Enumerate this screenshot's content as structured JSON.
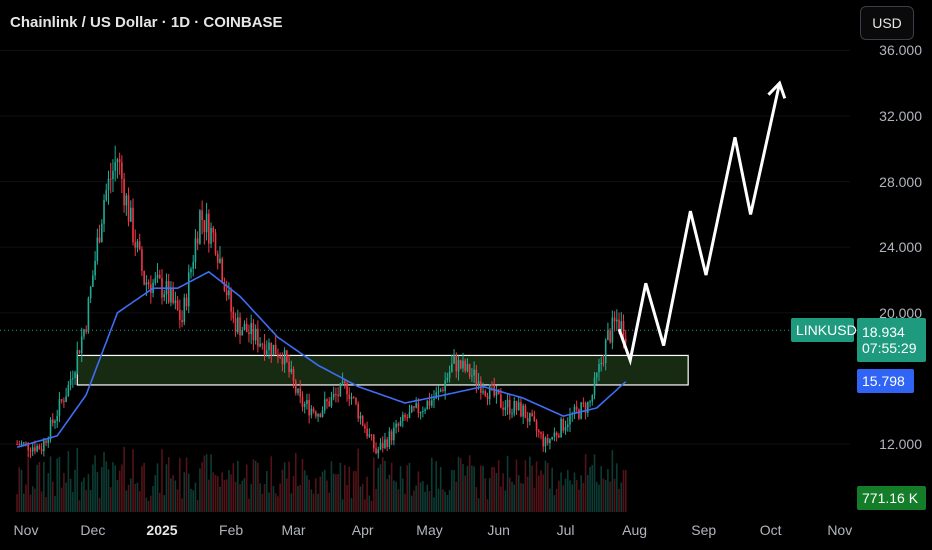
{
  "header": {
    "title": "Chainlink / US Dollar · 1D · COINBASE",
    "currency_label": "USD"
  },
  "symbol": "LINKUSD",
  "price_badge": {
    "price": "18.934",
    "countdown": "07:55:29",
    "color": "#1e9b7e"
  },
  "ma_badge": {
    "value": "15.798",
    "color": "#2f64f5"
  },
  "volume_badge": {
    "value": "771.16 K",
    "color": "#147d2a"
  },
  "colors": {
    "up": "#22ab94",
    "down": "#f23645",
    "ma": "#3d6ef5",
    "zone_fill": "#1f3a1a",
    "zone_stroke": "#ffffff",
    "projection": "#ffffff"
  },
  "chart_data": {
    "type": "candlestick",
    "title": "Chainlink / US Dollar · 1D · COINBASE",
    "y_ticks": [
      "36.000",
      "32.000",
      "28.000",
      "24.000",
      "20.000",
      "12.000"
    ],
    "x_ticks": [
      "Nov",
      "Dec",
      "2025",
      "Feb",
      "Mar",
      "Apr",
      "May",
      "Jun",
      "Jul",
      "Aug",
      "Sep",
      "Oct",
      "Nov"
    ],
    "x_ticks_bold": [
      "2025"
    ],
    "last_price": 18.934,
    "moving_average_last": 15.798,
    "support_zone": {
      "low": 15.6,
      "high": 17.4,
      "from": "2024-11-24",
      "to": "2025-08-25"
    },
    "price_path": [
      [
        "2024-10-28",
        12.0
      ],
      [
        "2024-11-08",
        11.8
      ],
      [
        "2024-11-20",
        15.5
      ],
      [
        "2024-11-28",
        19.5
      ],
      [
        "2024-12-06",
        27.0
      ],
      [
        "2024-12-12",
        29.5
      ],
      [
        "2024-12-18",
        25.5
      ],
      [
        "2024-12-24",
        22.0
      ],
      [
        "2025-01-02",
        21.5
      ],
      [
        "2025-01-10",
        19.5
      ],
      [
        "2025-01-18",
        26.0
      ],
      [
        "2025-01-25",
        24.5
      ],
      [
        "2025-02-02",
        19.5
      ],
      [
        "2025-02-12",
        18.5
      ],
      [
        "2025-02-24",
        17.5
      ],
      [
        "2025-03-04",
        14.5
      ],
      [
        "2025-03-12",
        14.0
      ],
      [
        "2025-03-25",
        15.5
      ],
      [
        "2025-04-07",
        11.5
      ],
      [
        "2025-04-20",
        13.5
      ],
      [
        "2025-05-05",
        15.0
      ],
      [
        "2025-05-12",
        17.0
      ],
      [
        "2025-05-22",
        16.0
      ],
      [
        "2025-06-02",
        14.5
      ],
      [
        "2025-06-12",
        14.0
      ],
      [
        "2025-06-22",
        12.0
      ],
      [
        "2025-07-02",
        13.5
      ],
      [
        "2025-07-12",
        14.5
      ],
      [
        "2025-07-20",
        18.5
      ],
      [
        "2025-07-24",
        19.5
      ],
      [
        "2025-07-28",
        18.9
      ]
    ],
    "moving_average": [
      [
        "2024-10-28",
        11.8
      ],
      [
        "2024-11-15",
        12.5
      ],
      [
        "2024-11-28",
        15.0
      ],
      [
        "2024-12-12",
        20.0
      ],
      [
        "2024-12-28",
        21.5
      ],
      [
        "2025-01-08",
        21.5
      ],
      [
        "2025-01-22",
        22.5
      ],
      [
        "2025-02-05",
        21.0
      ],
      [
        "2025-02-22",
        18.5
      ],
      [
        "2025-03-12",
        16.8
      ],
      [
        "2025-03-30",
        15.5
      ],
      [
        "2025-04-20",
        14.5
      ],
      [
        "2025-05-08",
        15.0
      ],
      [
        "2025-05-25",
        15.5
      ],
      [
        "2025-06-12",
        14.8
      ],
      [
        "2025-06-30",
        13.7
      ],
      [
        "2025-07-15",
        14.2
      ],
      [
        "2025-07-28",
        15.8
      ]
    ],
    "projection_path": [
      [
        "2025-07-25",
        19.0
      ],
      [
        "2025-07-30",
        17.1
      ],
      [
        "2025-08-06",
        21.8
      ],
      [
        "2025-08-14",
        18.0
      ],
      [
        "2025-08-26",
        26.2
      ],
      [
        "2025-09-02",
        22.3
      ],
      [
        "2025-09-15",
        30.7
      ],
      [
        "2025-09-22",
        26.0
      ],
      [
        "2025-10-05",
        34.0
      ]
    ]
  }
}
